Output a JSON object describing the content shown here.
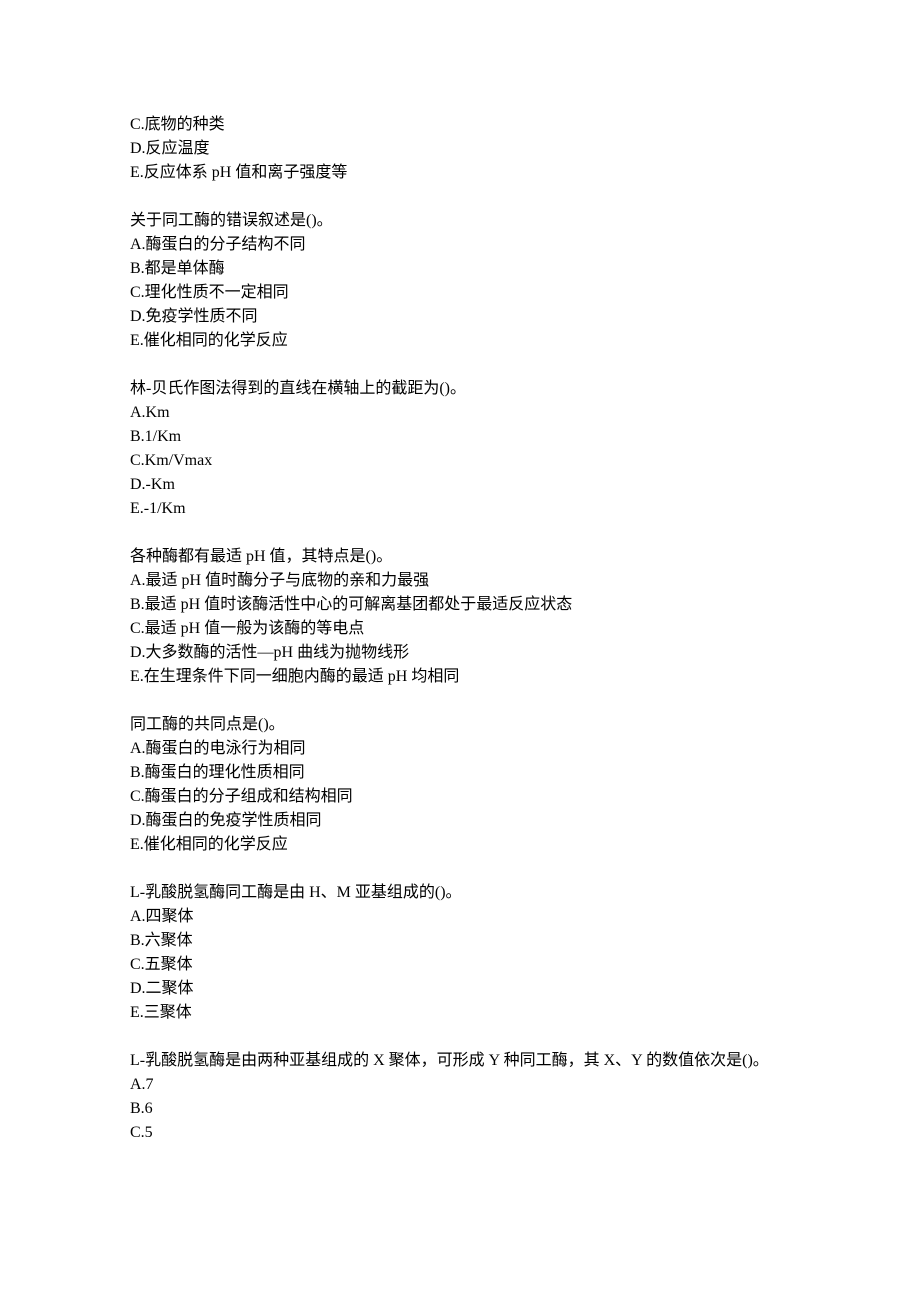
{
  "blocks": [
    {
      "lines": [
        "C.底物的种类",
        "D.反应温度",
        "E.反应体系 pH 值和离子强度等"
      ]
    },
    {
      "lines": [
        "关于同工酶的错误叙述是()。",
        "A.酶蛋白的分子结构不同",
        "B.都是单体酶",
        "C.理化性质不一定相同",
        "D.免疫学性质不同",
        "E.催化相同的化学反应"
      ]
    },
    {
      "lines": [
        "林-贝氏作图法得到的直线在横轴上的截距为()。",
        "A.Km",
        "B.1/Km",
        "C.Km/Vmax",
        "D.-Km",
        "E.-1/Km"
      ]
    },
    {
      "lines": [
        "各种酶都有最适 pH 值，其特点是()。",
        "A.最适 pH 值时酶分子与底物的亲和力最强",
        "B.最适 pH 值时该酶活性中心的可解离基团都处于最适反应状态",
        "C.最适 pH 值一般为该酶的等电点",
        "D.大多数酶的活性—pH 曲线为抛物线形",
        "E.在生理条件下同一细胞内酶的最适 pH 均相同"
      ]
    },
    {
      "lines": [
        "同工酶的共同点是()。",
        "A.酶蛋白的电泳行为相同",
        "B.酶蛋白的理化性质相同",
        "C.酶蛋白的分子组成和结构相同",
        "D.酶蛋白的免疫学性质相同",
        "E.催化相同的化学反应"
      ]
    },
    {
      "lines": [
        "L-乳酸脱氢酶同工酶是由 H、M 亚基组成的()。",
        "A.四聚体",
        "B.六聚体",
        "C.五聚体",
        "D.二聚体",
        "E.三聚体"
      ]
    },
    {
      "lines": [
        "L-乳酸脱氢酶是由两种亚基组成的 X 聚体，可形成 Y 种同工酶，其 X、Y 的数值依次是()。",
        "A.7",
        "B.6",
        "C.5"
      ]
    }
  ]
}
